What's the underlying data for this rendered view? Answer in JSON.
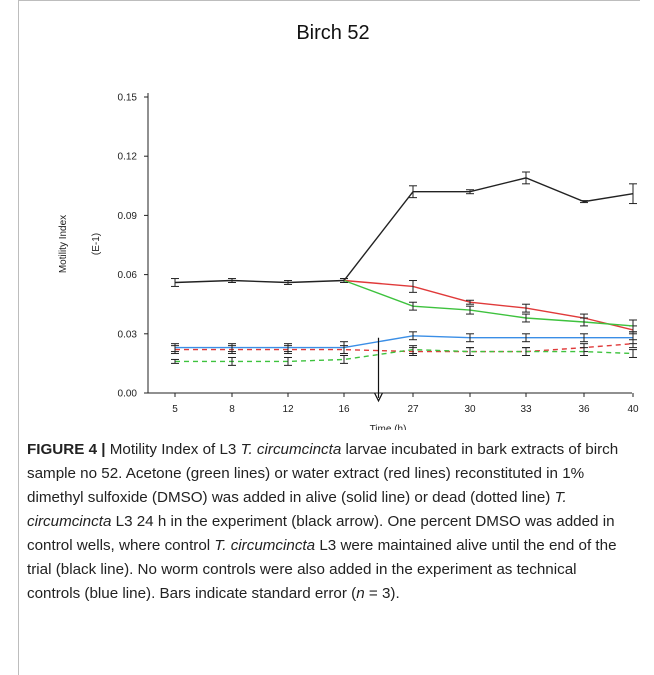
{
  "chart_data": {
    "type": "line",
    "title": "Birch 52",
    "xlabel": "Time (h)",
    "ylabel": "Motility Index",
    "ylabel_unit": "(E-1)",
    "categories": [
      "5",
      "8",
      "12",
      "16",
      "27",
      "30",
      "33",
      "36",
      "40"
    ],
    "yticks": [
      "0.00",
      "0.03",
      "0.06",
      "0.09",
      "0.12",
      "0.15"
    ],
    "ylim": [
      0,
      0.15
    ],
    "grid": false,
    "legend": "none",
    "series": [
      {
        "color": "#222222",
        "dashed": false,
        "values": [
          0.056,
          0.057,
          0.056,
          0.057,
          0.102,
          0.102,
          0.109,
          0.097,
          0.101
        ],
        "errors": [
          0.002,
          0.001,
          0.001,
          0.001,
          0.003,
          0.001,
          0.003,
          0.0005,
          0.005
        ]
      },
      {
        "color": "#e03a3a",
        "dashed": false,
        "values": [
          null,
          null,
          null,
          0.057,
          0.054,
          0.046,
          0.043,
          0.038,
          0.032
        ],
        "errors": [
          null,
          null,
          null,
          0.001,
          0.003,
          0.001,
          0.002,
          0.002,
          0.002
        ]
      },
      {
        "color": "#3ec23e",
        "dashed": false,
        "values": [
          null,
          null,
          null,
          0.057,
          0.044,
          0.042,
          0.038,
          0.036,
          0.034
        ],
        "errors": [
          null,
          null,
          null,
          0.001,
          0.002,
          0.002,
          0.002,
          0.002,
          0.003
        ]
      },
      {
        "color": "#3a8ee6",
        "dashed": false,
        "values": [
          0.023,
          0.023,
          0.023,
          0.023,
          0.029,
          0.028,
          0.028,
          0.028,
          0.028
        ],
        "errors": [
          0.002,
          0.002,
          0.002,
          0.003,
          0.002,
          0.002,
          0.002,
          0.002,
          0.003
        ]
      },
      {
        "color": "#e03a3a",
        "dashed": true,
        "values": [
          0.022,
          0.022,
          0.022,
          0.022,
          0.021,
          0.021,
          0.021,
          0.023,
          0.025
        ],
        "errors": [
          0.002,
          0.002,
          0.002,
          0.002,
          0.002,
          0.002,
          0.002,
          0.002,
          0.002
        ]
      },
      {
        "color": "#3ec23e",
        "dashed": true,
        "values": [
          0.016,
          0.016,
          0.016,
          0.017,
          0.022,
          0.021,
          0.021,
          0.021,
          0.02
        ],
        "errors": [
          0.001,
          0.002,
          0.002,
          0.002,
          0.002,
          0.002,
          0.002,
          0.002,
          0.002
        ]
      }
    ],
    "annotation": {
      "type": "arrow",
      "at_between": [
        "16",
        "27"
      ],
      "from_y": 0.028,
      "to_y": -0.004
    }
  },
  "caption": {
    "label": "FIGURE 4 |",
    "parts": [
      {
        "text": " Motility Index of L3 ",
        "italic": false
      },
      {
        "text": "T. circumcincta",
        "italic": true
      },
      {
        "text": " larvae incubated in bark extracts of birch sample no 52. Acetone (green lines) or water extract (red lines) reconstituted in 1% dimethyl sulfoxide (DMSO) was added in alive (solid line) or dead (dotted line) ",
        "italic": false
      },
      {
        "text": "T. circumcincta",
        "italic": true
      },
      {
        "text": " L3 24 h in the experiment (black arrow). One percent DMSO was added in control wells, where control ",
        "italic": false
      },
      {
        "text": "T. circumcincta",
        "italic": true
      },
      {
        "text": " L3 were maintained alive until the end of the trial (black line). No worm controls were also added in the experiment as technical controls (blue line). Bars indicate standard error (",
        "italic": false
      },
      {
        "text": "n",
        "italic": true
      },
      {
        "text": " = 3).",
        "italic": false
      }
    ]
  }
}
